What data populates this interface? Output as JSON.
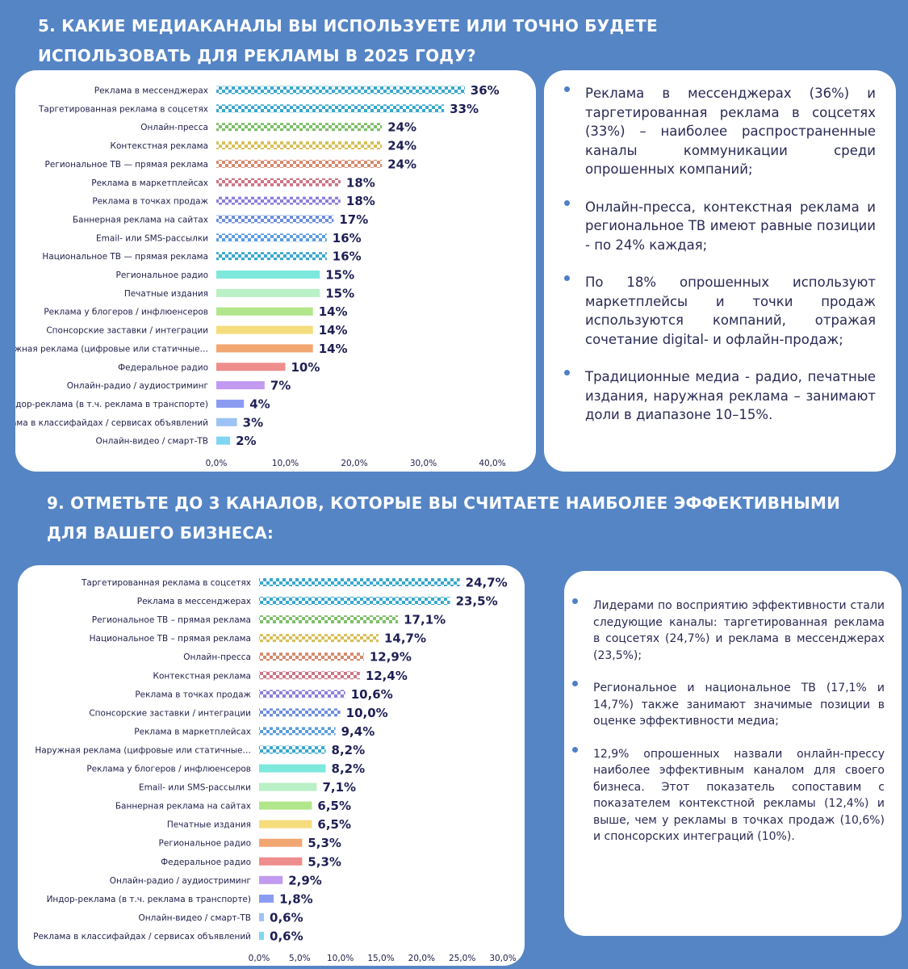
{
  "headings": {
    "q5": "5. КАКИЕ МЕДИАКАНАЛЫ ВЫ ИСПОЛЬЗУЕТЕ ИЛИ ТОЧНО БУДЕТЕ ИСПОЛЬЗОВАТЬ ДЛЯ РЕКЛАМЫ В 2025 ГОДУ?",
    "q9": "9. ОТМЕТЬТЕ ДО 3 КАНАЛОВ, КОТОРЫЕ ВЫ СЧИТАЕТЕ НАИБОЛЕЕ ЭФФЕКТИВНЫМИ ДЛЯ ВАШЕГО БИЗНЕСА:"
  },
  "chart_data": [
    {
      "type": "bar",
      "orientation": "horizontal",
      "categories": [
        "Реклама в мессенджерах",
        "Таргетированная реклама в соцсетях",
        "Онлайн-пресса",
        "Контекстная реклама",
        "Региональное ТВ — прямая реклама",
        "Реклама в маркетплейсах",
        "Реклама в точках продаж",
        "Баннерная реклама на сайтах",
        "Email- или SMS-рассылки",
        "Национальное ТВ — прямая реклама",
        "Региональное радио",
        "Печатные издания",
        "Реклама у блогеров / инфлюенсеров",
        "Спонсорские заставки / интеграции",
        "Наружная реклама (цифровые или статичные…",
        "Федеральное радио",
        "Онлайн-радио / аудиостриминг",
        "Индор-реклама (в т.ч. реклама в транспорте)",
        "Реклама в классифайдах / сервисах объявлений",
        "Онлайн-видео / смарт-ТВ"
      ],
      "values": [
        36,
        33,
        24,
        24,
        24,
        18,
        18,
        17,
        16,
        16,
        15,
        15,
        14,
        14,
        14,
        10,
        7,
        4,
        3,
        2
      ],
      "value_labels": [
        "36%",
        "33%",
        "24%",
        "24%",
        "24%",
        "18%",
        "18%",
        "17%",
        "16%",
        "16%",
        "15%",
        "15%",
        "14%",
        "14%",
        "14%",
        "10%",
        "7%",
        "4%",
        "3%",
        "2%"
      ],
      "xlim": [
        0,
        40
      ],
      "xticks": [
        "0,0%",
        "10,0%",
        "20,0%",
        "30,0%",
        "40,0%"
      ],
      "colors": [
        "#3aa8cc",
        "#3aa8cc",
        "#7fbf6a",
        "#d7c05a",
        "#d48a6e",
        "#cc7585",
        "#8f7fd8",
        "#6d8fdc",
        "#5b9ee0",
        "#3aa8cc",
        "#7de8dc",
        "#b9f0c6",
        "#b2e68a",
        "#f5dc7c",
        "#f2a672",
        "#ef8d8d",
        "#c29af0",
        "#8c9bf2",
        "#9cc2f5",
        "#7fd6f2"
      ],
      "patterned": [
        true,
        true,
        true,
        true,
        true,
        true,
        true,
        true,
        true,
        true,
        false,
        false,
        false,
        false,
        false,
        false,
        false,
        false,
        false,
        false
      ]
    },
    {
      "type": "bar",
      "orientation": "horizontal",
      "categories": [
        "Таргетированная реклама в соцсетях",
        "Реклама в мессенджерах",
        "Региональное ТВ – прямая реклама",
        "Национальное ТВ – прямая реклама",
        "Онлайн-пресса",
        "Контекстная реклама",
        "Реклама в точках продаж",
        "Спонсорские заставки / интеграции",
        "Реклама в маркетплейсах",
        "Наружная реклама (цифровые или статичные…",
        "Реклама у блогеров / инфлюенсеров",
        "Email- или SMS-рассылки",
        "Баннерная реклама на сайтах",
        "Печатные издания",
        "Региональное радио",
        "Федеральное радио",
        "Онлайн-радио / аудиостриминг",
        "Индор-реклама (в т.ч. реклама в транспорте)",
        "Онлайн-видео / смарт-ТВ",
        "Реклама в классифайдах / сервисах объявлений"
      ],
      "values": [
        24.7,
        23.5,
        17.1,
        14.7,
        12.9,
        12.4,
        10.6,
        10.0,
        9.4,
        8.2,
        8.2,
        7.1,
        6.5,
        6.5,
        5.3,
        5.3,
        2.9,
        1.8,
        0.6,
        0.6
      ],
      "value_labels": [
        "24,7%",
        "23,5%",
        "17,1%",
        "14,7%",
        "12,9%",
        "12,4%",
        "10,6%",
        "10,0%",
        "9,4%",
        "8,2%",
        "8,2%",
        "7,1%",
        "6,5%",
        "6,5%",
        "5,3%",
        "5,3%",
        "2,9%",
        "1,8%",
        "0,6%",
        "0,6%"
      ],
      "xlim": [
        0,
        30
      ],
      "xticks": [
        "0,0%",
        "5,0%",
        "10,0%",
        "15,0%",
        "20,0%",
        "25,0%",
        "30,0%"
      ],
      "colors": [
        "#3aa8cc",
        "#3aa8cc",
        "#7fbf6a",
        "#d7c05a",
        "#d48a6e",
        "#cc7585",
        "#8f7fd8",
        "#6d8fdc",
        "#5b9ee0",
        "#3aa8cc",
        "#7de8dc",
        "#b9f0c6",
        "#b2e68a",
        "#f5dc7c",
        "#f2a672",
        "#ef8d8d",
        "#c29af0",
        "#8c9bf2",
        "#9cc2f5",
        "#7fd6f2"
      ],
      "patterned": [
        true,
        true,
        true,
        true,
        true,
        true,
        true,
        true,
        true,
        true,
        false,
        false,
        false,
        false,
        false,
        false,
        false,
        false,
        false,
        false
      ]
    }
  ],
  "notes1": [
    "Реклама в мессенджерах (36%) и таргетированная реклама в соцсетях (33%) – наиболее распространенные каналы коммуникации среди опрошенных компаний;",
    "Онлайн-пресса, контекстная реклама и региональное ТВ имеют равные позиции - по 24% каждая;",
    "По 18% опрошенных используют маркетплейсы и точки продаж используются компаний, отражая сочетание digital- и офлайн-продаж;",
    "Традиционные медиа - радио, печатные издания, наружная реклама – занимают доли в диапазоне 10–15%."
  ],
  "notes2": [
    "Лидерами по восприятию эффективности стали следующие каналы: таргетированная реклама в соцсетях (24,7%) и реклама в мессенджерах (23,5%);",
    "Региональное и национальное ТВ (17,1% и 14,7%) также занимают значимые позиции в оценке эффективности медиа;",
    "12,9% опрошенных назвали онлайн-прессу наиболее эффективным каналом для своего бизнеса. Этот показатель сопоставим с показателем контекстной рекламы (12,4%) и выше, чем у рекламы в точках продаж (10,6%) и спонсорских интеграций (10%)."
  ]
}
